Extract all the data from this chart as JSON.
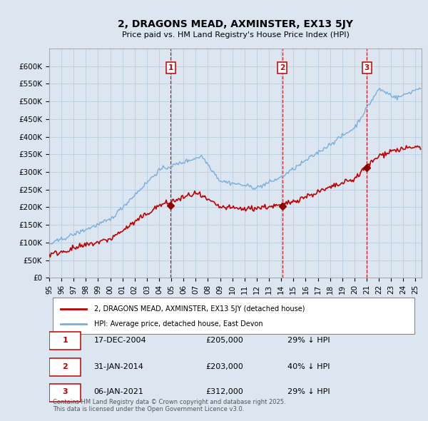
{
  "title": "2, DRAGONS MEAD, AXMINSTER, EX13 5JY",
  "subtitle": "Price paid vs. HM Land Registry's House Price Index (HPI)",
  "ylim": [
    0,
    650000
  ],
  "yticks": [
    0,
    50000,
    100000,
    150000,
    200000,
    250000,
    300000,
    350000,
    400000,
    450000,
    500000,
    550000,
    600000
  ],
  "ytick_labels": [
    "£0",
    "£50K",
    "£100K",
    "£150K",
    "£200K",
    "£250K",
    "£300K",
    "£350K",
    "£400K",
    "£450K",
    "£500K",
    "£550K",
    "£600K"
  ],
  "xlim_start": 1995.0,
  "xlim_end": 2025.5,
  "hpi_color": "#7aaedc",
  "property_color": "#c00000",
  "sale_marker_color": "#8b0000",
  "vline_color": "#cc0000",
  "sale_box_color": "#c00000",
  "background_color": "#dce6f1",
  "plot_bg": "#dce6f1",
  "grid_color": "#b8cfe0",
  "sales": [
    {
      "num": 1,
      "date": "17-DEC-2004",
      "price": 205000,
      "pct": "29%",
      "year": 2004.96
    },
    {
      "num": 2,
      "date": "31-JAN-2014",
      "price": 203000,
      "pct": "40%",
      "year": 2014.08
    },
    {
      "num": 3,
      "date": "06-JAN-2021",
      "price": 312000,
      "pct": "29%",
      "year": 2021.02
    }
  ],
  "legend_line1": "2, DRAGONS MEAD, AXMINSTER, EX13 5JY (detached house)",
  "legend_line2": "HPI: Average price, detached house, East Devon",
  "footnote": "Contains HM Land Registry data © Crown copyright and database right 2025.\nThis data is licensed under the Open Government Licence v3.0."
}
